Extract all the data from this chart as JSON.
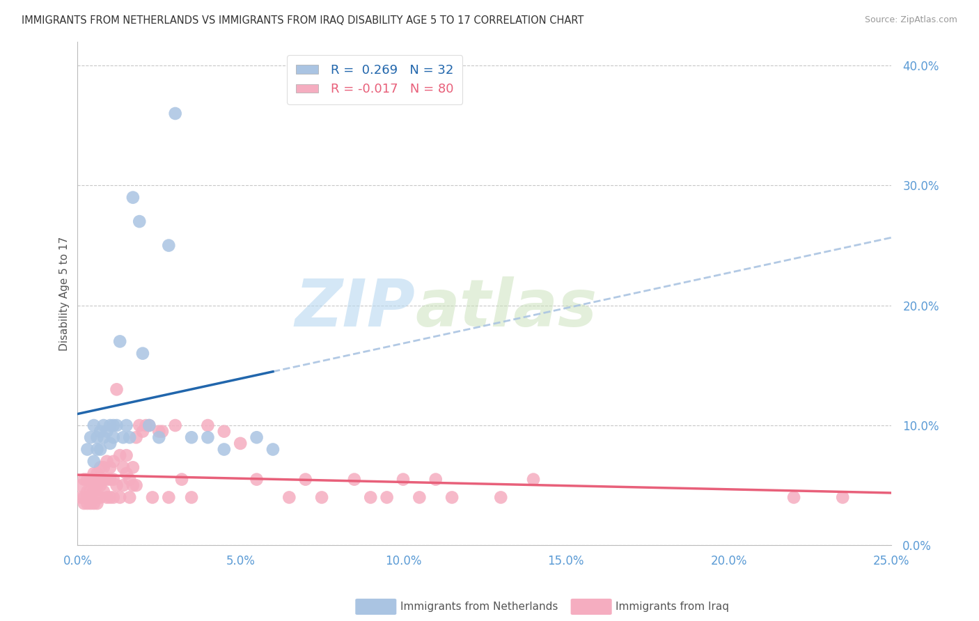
{
  "title": "IMMIGRANTS FROM NETHERLANDS VS IMMIGRANTS FROM IRAQ DISABILITY AGE 5 TO 17 CORRELATION CHART",
  "source": "Source: ZipAtlas.com",
  "ylabel": "Disability Age 5 to 17",
  "xlim": [
    0.0,
    0.25
  ],
  "ylim": [
    0.0,
    0.42
  ],
  "yticks": [
    0.0,
    0.1,
    0.2,
    0.3,
    0.4
  ],
  "xticks": [
    0.0,
    0.05,
    0.1,
    0.15,
    0.2,
    0.25
  ],
  "netherlands_color": "#aac4e2",
  "iraq_color": "#f5adc0",
  "netherlands_line_color": "#2166ac",
  "iraq_line_color": "#e8607a",
  "dashed_line_color": "#aac4e2",
  "netherlands_R": 0.269,
  "netherlands_N": 32,
  "iraq_R": -0.017,
  "iraq_N": 80,
  "netherlands_scatter_x": [
    0.003,
    0.004,
    0.005,
    0.005,
    0.006,
    0.006,
    0.007,
    0.007,
    0.008,
    0.008,
    0.009,
    0.01,
    0.01,
    0.011,
    0.011,
    0.012,
    0.013,
    0.014,
    0.015,
    0.016,
    0.017,
    0.019,
    0.02,
    0.022,
    0.025,
    0.028,
    0.03,
    0.035,
    0.04,
    0.045,
    0.055,
    0.06
  ],
  "netherlands_scatter_y": [
    0.08,
    0.09,
    0.1,
    0.07,
    0.09,
    0.08,
    0.095,
    0.08,
    0.1,
    0.09,
    0.095,
    0.1,
    0.085,
    0.1,
    0.09,
    0.1,
    0.17,
    0.09,
    0.1,
    0.09,
    0.29,
    0.27,
    0.16,
    0.1,
    0.09,
    0.25,
    0.36,
    0.09,
    0.09,
    0.08,
    0.09,
    0.08
  ],
  "iraq_scatter_x": [
    0.001,
    0.001,
    0.002,
    0.002,
    0.002,
    0.003,
    0.003,
    0.003,
    0.003,
    0.004,
    0.004,
    0.004,
    0.005,
    0.005,
    0.005,
    0.005,
    0.006,
    0.006,
    0.006,
    0.006,
    0.006,
    0.007,
    0.007,
    0.007,
    0.007,
    0.008,
    0.008,
    0.008,
    0.009,
    0.009,
    0.009,
    0.01,
    0.01,
    0.01,
    0.011,
    0.011,
    0.011,
    0.012,
    0.012,
    0.013,
    0.013,
    0.014,
    0.014,
    0.015,
    0.015,
    0.016,
    0.016,
    0.017,
    0.017,
    0.018,
    0.018,
    0.019,
    0.02,
    0.021,
    0.022,
    0.023,
    0.025,
    0.026,
    0.028,
    0.03,
    0.032,
    0.035,
    0.04,
    0.045,
    0.05,
    0.055,
    0.065,
    0.07,
    0.075,
    0.085,
    0.09,
    0.095,
    0.1,
    0.105,
    0.11,
    0.115,
    0.13,
    0.14,
    0.22,
    0.235
  ],
  "iraq_scatter_y": [
    0.05,
    0.04,
    0.055,
    0.04,
    0.035,
    0.055,
    0.045,
    0.04,
    0.035,
    0.055,
    0.045,
    0.035,
    0.06,
    0.05,
    0.045,
    0.035,
    0.06,
    0.055,
    0.05,
    0.04,
    0.035,
    0.065,
    0.055,
    0.05,
    0.04,
    0.065,
    0.055,
    0.045,
    0.07,
    0.055,
    0.04,
    0.065,
    0.055,
    0.04,
    0.07,
    0.055,
    0.04,
    0.13,
    0.05,
    0.075,
    0.04,
    0.065,
    0.05,
    0.075,
    0.06,
    0.055,
    0.04,
    0.065,
    0.05,
    0.09,
    0.05,
    0.1,
    0.095,
    0.1,
    0.1,
    0.04,
    0.095,
    0.095,
    0.04,
    0.1,
    0.055,
    0.04,
    0.1,
    0.095,
    0.085,
    0.055,
    0.04,
    0.055,
    0.04,
    0.055,
    0.04,
    0.04,
    0.055,
    0.04,
    0.055,
    0.04,
    0.04,
    0.055,
    0.04,
    0.04
  ],
  "watermark_zip": "ZIP",
  "watermark_atlas": "atlas",
  "legend_label_netherlands": "Immigrants from Netherlands",
  "legend_label_iraq": "Immigrants from Iraq"
}
